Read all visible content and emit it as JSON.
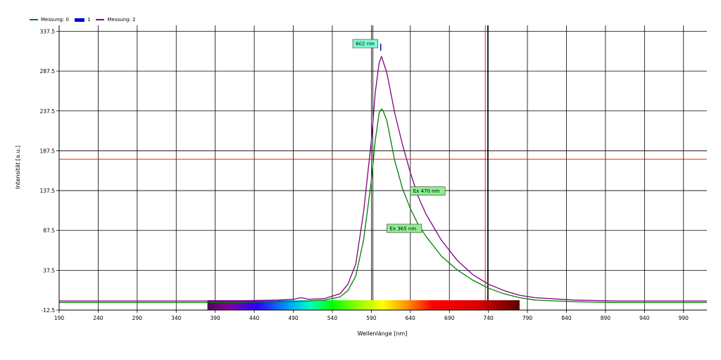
{
  "chart_data": {
    "type": "line",
    "xlabel": "Wellenlänge [nm]",
    "ylabel": "Intensität [a.u.]",
    "xlim": [
      190,
      1020
    ],
    "ylim": [
      -12.5,
      345
    ],
    "x_ticks": [
      190,
      240,
      290,
      340,
      390,
      440,
      490,
      540,
      590,
      640,
      690,
      740,
      790,
      840,
      890,
      940,
      990
    ],
    "y_ticks": [
      -12.5,
      37.5,
      87.5,
      137.5,
      187.5,
      237.5,
      287.5,
      337.5
    ],
    "x_tick_labels": [
      "190",
      "240",
      "290",
      "340",
      "390",
      "440",
      "490",
      "540",
      "590",
      "640",
      "690",
      "740",
      "790",
      "840",
      "890",
      "940",
      "990"
    ],
    "y_tick_labels": [
      "-12.5",
      "37.5",
      "87.5",
      "137.5",
      "187.5",
      "237.5",
      "287.5",
      "337.5"
    ],
    "grid": true,
    "legend_position": "top-left",
    "legend": [
      {
        "label": "Messung: 0",
        "color": "#008000",
        "style": "line"
      },
      {
        "label": "1",
        "color": "#0000cd",
        "style": "box"
      },
      {
        "label": "Messung: 2",
        "color": "#800080",
        "style": "line"
      }
    ],
    "series": [
      {
        "name": "Messung: 0",
        "color": "#008000",
        "x": [
          190,
          300,
          400,
          480,
          510,
          530,
          550,
          560,
          570,
          580,
          590,
          595,
          600,
          603,
          605,
          610,
          615,
          620,
          630,
          640,
          650,
          660,
          680,
          700,
          720,
          740,
          760,
          780,
          800,
          850,
          900,
          950,
          1020
        ],
        "y": [
          -3,
          -3,
          -3,
          -2,
          -1,
          0,
          4,
          12,
          30,
          75,
          150,
          200,
          235,
          240,
          238,
          225,
          200,
          175,
          140,
          115,
          95,
          80,
          55,
          38,
          25,
          15,
          8,
          3,
          0,
          -2,
          -3,
          -3,
          -3
        ]
      },
      {
        "name": "Messung: 2",
        "color": "#800080",
        "x": [
          190,
          300,
          400,
          470,
          490,
          500,
          510,
          530,
          550,
          560,
          570,
          580,
          590,
          595,
          600,
          603,
          605,
          610,
          615,
          620,
          630,
          640,
          650,
          660,
          680,
          700,
          720,
          740,
          760,
          780,
          800,
          850,
          900,
          950,
          1020
        ],
        "y": [
          -1,
          -1,
          -1,
          0,
          1,
          3,
          1,
          2,
          8,
          20,
          45,
          110,
          200,
          260,
          298,
          306,
          300,
          285,
          260,
          235,
          195,
          160,
          130,
          108,
          75,
          50,
          32,
          20,
          12,
          6,
          3,
          0,
          -1,
          -1,
          -1
        ]
      }
    ],
    "reference_lines": [
      {
        "orientation": "horizontal",
        "value": 177,
        "color": "#ff0000"
      },
      {
        "orientation": "vertical",
        "value": 736,
        "color": "#ff0000"
      },
      {
        "orientation": "vertical",
        "value": 739,
        "color": "#000000"
      }
    ],
    "cursor_line": {
      "orientation": "vertical",
      "value": 592,
      "color": "#000000"
    },
    "peak_marker": {
      "x": 602,
      "y_from": 313,
      "y_to": 322,
      "color": "#0000cd"
    },
    "annotations": [
      {
        "text": "602 nm",
        "x": 602,
        "y": 322,
        "fill": "#7fffd4"
      },
      {
        "text": "Ex 470 nm",
        "x": 640,
        "y": 137,
        "fill": "#90ee90"
      },
      {
        "text": "Ex 365 nm",
        "x": 610,
        "y": 90,
        "fill": "#90ee90"
      }
    ],
    "spectrum_bar": {
      "x_start": 380,
      "x_end": 780
    }
  }
}
